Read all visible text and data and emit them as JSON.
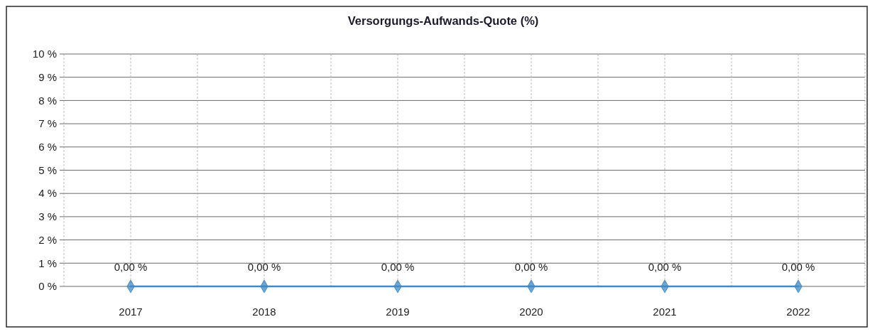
{
  "chart_data": {
    "type": "line",
    "title": "Versorgungs-Aufwands-Quote (%)",
    "categories": [
      "2017",
      "2018",
      "2019",
      "2020",
      "2021",
      "2022"
    ],
    "series": [
      {
        "color": "#3f8ac6",
        "values": [
          0,
          0,
          0,
          0,
          0,
          0
        ],
        "value_labels": [
          "0,00 %",
          "0,00 %",
          "0,00 %",
          "0,00 %",
          "0,00 %",
          "0,00 %"
        ]
      }
    ],
    "ylim": [
      0,
      10
    ],
    "yticks": [
      {
        "value": 0,
        "label": "0 %"
      },
      {
        "value": 1,
        "label": "1 %"
      },
      {
        "value": 2,
        "label": "2 %"
      },
      {
        "value": 3,
        "label": "3 %"
      },
      {
        "value": 4,
        "label": "4 %"
      },
      {
        "value": 5,
        "label": "5 %"
      },
      {
        "value": 6,
        "label": "6 %"
      },
      {
        "value": 7,
        "label": "7 %"
      },
      {
        "value": 8,
        "label": "8 %"
      },
      {
        "value": 9,
        "label": "9 %"
      },
      {
        "value": 10,
        "label": "10 %"
      }
    ],
    "grid": true,
    "marker": "diamond",
    "line_style": "solid"
  }
}
